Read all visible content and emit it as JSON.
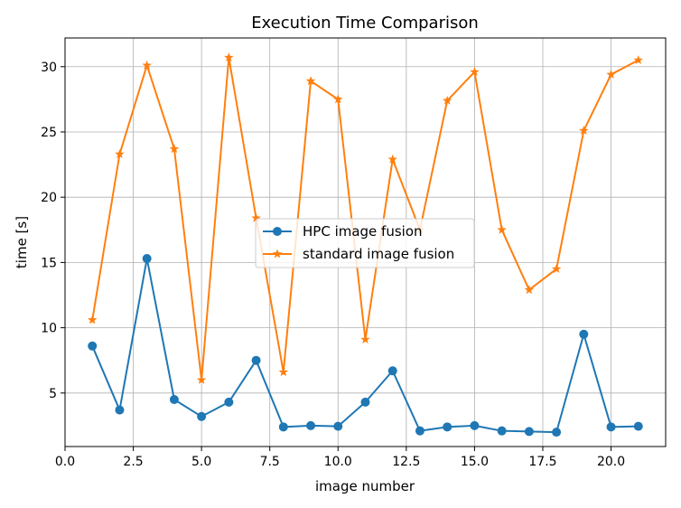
{
  "chart_data": {
    "type": "line",
    "title": "Execution Time Comparison",
    "xlabel": "image number",
    "ylabel": "time [s]",
    "xlim": [
      0.0,
      22.0
    ],
    "ylim": [
      0.9,
      32.2
    ],
    "xticks": [
      0.0,
      2.5,
      5.0,
      7.5,
      10.0,
      12.5,
      15.0,
      17.5,
      20.0
    ],
    "xtick_labels": [
      "0.0",
      "2.5",
      "5.0",
      "7.5",
      "10.0",
      "12.5",
      "15.0",
      "17.5",
      "20.0"
    ],
    "yticks": [
      5,
      10,
      15,
      20,
      25,
      30
    ],
    "ytick_labels": [
      "5",
      "10",
      "15",
      "20",
      "25",
      "30"
    ],
    "grid": true,
    "legend_position": "center",
    "x": [
      1,
      2,
      3,
      4,
      5,
      6,
      7,
      8,
      9,
      10,
      11,
      12,
      13,
      14,
      15,
      16,
      17,
      18,
      19,
      20,
      21
    ],
    "series": [
      {
        "name": "HPC image fusion",
        "color": "#1f77b4",
        "marker": "circle",
        "values": [
          8.6,
          3.7,
          15.3,
          4.5,
          3.2,
          4.3,
          7.5,
          2.4,
          2.5,
          2.45,
          4.3,
          6.7,
          2.1,
          2.4,
          2.5,
          2.1,
          2.05,
          2.0,
          9.5,
          2.4,
          2.45
        ]
      },
      {
        "name": "standard image fusion",
        "color": "#ff7f0e",
        "marker": "star",
        "values": [
          10.6,
          23.3,
          30.1,
          23.7,
          6.0,
          30.7,
          18.4,
          6.6,
          28.9,
          27.5,
          9.1,
          22.9,
          17.5,
          27.4,
          29.6,
          17.5,
          12.9,
          14.5,
          25.1,
          29.4,
          30.5
        ]
      }
    ]
  }
}
